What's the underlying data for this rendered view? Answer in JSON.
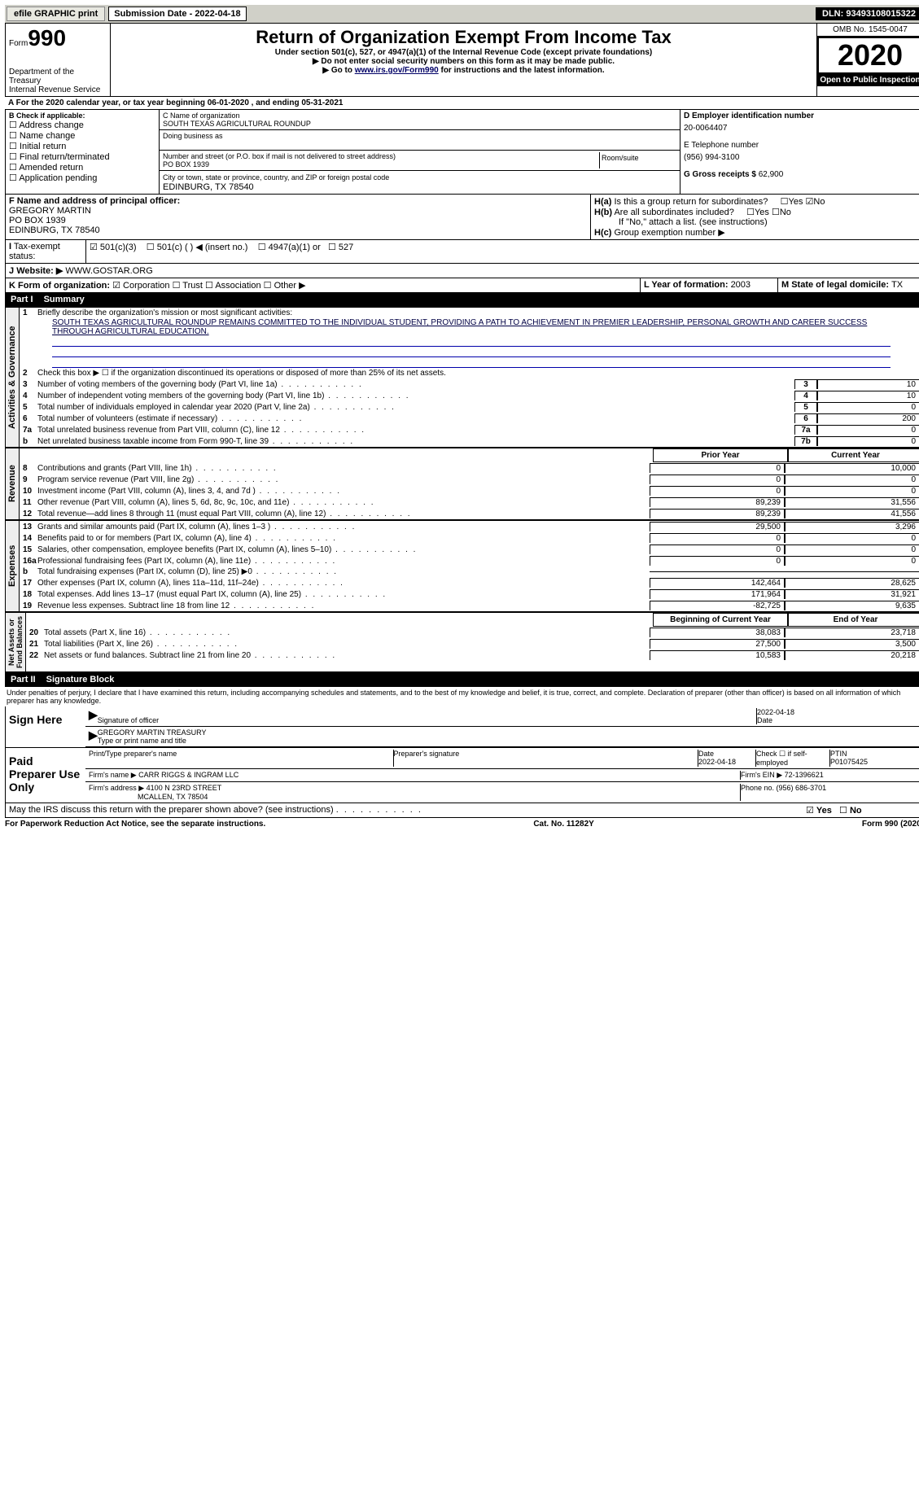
{
  "topbar": {
    "efile": "efile GRAPHIC print",
    "sub_label": "Submission Date - 2022-04-18",
    "dln": "DLN: 93493108015322"
  },
  "header": {
    "form_label": "Form",
    "form_num": "990",
    "dept": "Department of the Treasury",
    "irs": "Internal Revenue Service",
    "title": "Return of Organization Exempt From Income Tax",
    "subtitle": "Under section 501(c), 527, or 4947(a)(1) of the Internal Revenue Code (except private foundations)",
    "warn": "▶ Do not enter social security numbers on this form as it may be made public.",
    "goto": "▶ Go to ",
    "goto_link": "www.irs.gov/Form990",
    "goto_suffix": " for instructions and the latest information.",
    "omb": "OMB No. 1545-0047",
    "year": "2020",
    "open": "Open to Public Inspection"
  },
  "period": {
    "text_a": "A For the 2020 calendar year, or tax year beginning ",
    "begin": "06-01-2020",
    "text_b": " , and ending ",
    "end": "05-31-2021"
  },
  "sect_b": {
    "label": "B Check if applicable:",
    "items": [
      "Address change",
      "Name change",
      "Initial return",
      "Final return/terminated",
      "Amended return",
      "Application pending"
    ]
  },
  "sect_c": {
    "name_label": "C Name of organization",
    "name": "SOUTH TEXAS AGRICULTURAL ROUNDUP",
    "dba_label": "Doing business as",
    "addr_label": "Number and street (or P.O. box if mail is not delivered to street address)",
    "room_label": "Room/suite",
    "addr": "PO BOX 1939",
    "city_label": "City or town, state or province, country, and ZIP or foreign postal code",
    "city": "EDINBURG, TX  78540"
  },
  "sect_de": {
    "d_label": "D Employer identification number",
    "ein": "20-0064407",
    "e_label": "E Telephone number",
    "phone": "(956) 994-3100",
    "g_label": "G Gross receipts $ ",
    "g_val": "62,900"
  },
  "sect_f": {
    "label": "F  Name and address of principal officer:",
    "name": "GREGORY MARTIN",
    "addr1": "PO BOX 1939",
    "addr2": "EDINBURG, TX  78540"
  },
  "sect_h": {
    "ha": "Is this a group return for subordinates?",
    "ha_ans": "No",
    "hb": "Are all subordinates included?",
    "hb_note": "If \"No,\" attach a list. (see instructions)",
    "hc": "Group exemption number ▶"
  },
  "tax_status": {
    "label": "Tax-exempt status:",
    "opt1": "501(c)(3)",
    "opt2": "501(c) (  ) ◀ (insert no.)",
    "opt3": "4947(a)(1) or",
    "opt4": "527"
  },
  "website": {
    "label": "Website: ▶",
    "val": "WWW.GOSTAR.ORG"
  },
  "sect_k": {
    "label": "K Form of organization:",
    "opts": [
      "Corporation",
      "Trust",
      "Association",
      "Other ▶"
    ]
  },
  "sect_l": {
    "label": "L Year of formation: ",
    "val": "2003"
  },
  "sect_m": {
    "label": "M State of legal domicile: ",
    "val": "TX"
  },
  "part1": {
    "label": "Part I",
    "title": "Summary"
  },
  "mission": {
    "q1": "Briefly describe the organization's mission or most significant activities:",
    "text": "SOUTH TEXAS AGRICULTURAL ROUNDUP REMAINS COMMITTED TO THE INDIVIDUAL STUDENT, PROVIDING A PATH TO ACHIEVEMENT IN PREMIER LEADERSHIP, PERSONAL GROWTH AND CAREER SUCCESS THROUGH AGRICULTURAL EDUCATION."
  },
  "gov_lines": [
    {
      "n": "2",
      "t": "Check this box ▶ ☐  if the organization discontinued its operations or disposed of more than 25% of its net assets."
    },
    {
      "n": "3",
      "t": "Number of voting members of the governing body (Part VI, line 1a)",
      "box": "3",
      "v": "10"
    },
    {
      "n": "4",
      "t": "Number of independent voting members of the governing body (Part VI, line 1b)",
      "box": "4",
      "v": "10"
    },
    {
      "n": "5",
      "t": "Total number of individuals employed in calendar year 2020 (Part V, line 2a)",
      "box": "5",
      "v": "0"
    },
    {
      "n": "6",
      "t": "Total number of volunteers (estimate if necessary)",
      "box": "6",
      "v": "200"
    },
    {
      "n": "7a",
      "t": "Total unrelated business revenue from Part VIII, column (C), line 12",
      "box": "7a",
      "v": "0"
    },
    {
      "n": "b",
      "t": "Net unrelated business taxable income from Form 990-T, line 39",
      "box": "7b",
      "v": "0"
    }
  ],
  "col_hdr": {
    "py": "Prior Year",
    "cy": "Current Year",
    "bcy": "Beginning of Current Year",
    "eoy": "End of Year"
  },
  "rev_lines": [
    {
      "n": "8",
      "t": "Contributions and grants (Part VIII, line 1h)",
      "py": "0",
      "cy": "10,000"
    },
    {
      "n": "9",
      "t": "Program service revenue (Part VIII, line 2g)",
      "py": "0",
      "cy": "0"
    },
    {
      "n": "10",
      "t": "Investment income (Part VIII, column (A), lines 3, 4, and 7d )",
      "py": "0",
      "cy": "0"
    },
    {
      "n": "11",
      "t": "Other revenue (Part VIII, column (A), lines 5, 6d, 8c, 9c, 10c, and 11e)",
      "py": "89,239",
      "cy": "31,556"
    },
    {
      "n": "12",
      "t": "Total revenue—add lines 8 through 11 (must equal Part VIII, column (A), line 12)",
      "py": "89,239",
      "cy": "41,556"
    }
  ],
  "exp_lines": [
    {
      "n": "13",
      "t": "Grants and similar amounts paid (Part IX, column (A), lines 1–3 )",
      "py": "29,500",
      "cy": "3,296"
    },
    {
      "n": "14",
      "t": "Benefits paid to or for members (Part IX, column (A), line 4)",
      "py": "0",
      "cy": "0"
    },
    {
      "n": "15",
      "t": "Salaries, other compensation, employee benefits (Part IX, column (A), lines 5–10)",
      "py": "0",
      "cy": "0"
    },
    {
      "n": "16a",
      "t": "Professional fundraising fees (Part IX, column (A), line 11e)",
      "py": "0",
      "cy": "0"
    },
    {
      "n": "b",
      "t": "Total fundraising expenses (Part IX, column (D), line 25) ▶0",
      "py": "",
      "cy": "",
      "gray": true
    },
    {
      "n": "17",
      "t": "Other expenses (Part IX, column (A), lines 11a–11d, 11f–24e)",
      "py": "142,464",
      "cy": "28,625"
    },
    {
      "n": "18",
      "t": "Total expenses. Add lines 13–17 (must equal Part IX, column (A), line 25)",
      "py": "171,964",
      "cy": "31,921"
    },
    {
      "n": "19",
      "t": "Revenue less expenses. Subtract line 18 from line 12",
      "py": "-82,725",
      "cy": "9,635"
    }
  ],
  "na_lines": [
    {
      "n": "20",
      "t": "Total assets (Part X, line 16)",
      "py": "38,083",
      "cy": "23,718"
    },
    {
      "n": "21",
      "t": "Total liabilities (Part X, line 26)",
      "py": "27,500",
      "cy": "3,500"
    },
    {
      "n": "22",
      "t": "Net assets or fund balances. Subtract line 21 from line 20",
      "py": "10,583",
      "cy": "20,218"
    }
  ],
  "part2": {
    "label": "Part II",
    "title": "Signature Block"
  },
  "sig_decl": "Under penalties of perjury, I declare that I have examined this return, including accompanying schedules and statements, and to the best of my knowledge and belief, it is true, correct, and complete. Declaration of preparer (other than officer) is based on all information of which preparer has any knowledge.",
  "sign": {
    "here": "Sign Here",
    "sig_label": "Signature of officer",
    "date_label": "Date",
    "date": "2022-04-18",
    "name": "GREGORY MARTIN  TREASURY",
    "name_label": "Type or print name and title"
  },
  "paid": {
    "label": "Paid Preparer Use Only",
    "h1": "Print/Type preparer's name",
    "h2": "Preparer's signature",
    "h3": "Date",
    "h4": "Check ☐ if self-employed",
    "h5": "PTIN",
    "date": "2022-04-18",
    "ptin": "P01075425",
    "firm_label": "Firm's name  ▶",
    "firm": "CARR RIGGS & INGRAM LLC",
    "ein_label": "Firm's EIN ▶",
    "ein": "72-1396621",
    "addr_label": "Firm's address ▶",
    "addr1": "4100 N 23RD STREET",
    "addr2": "MCALLEN, TX  78504",
    "phone_label": "Phone no. ",
    "phone": "(956) 686-3701"
  },
  "discuss": {
    "q": "May the IRS discuss this return with the preparer shown above? (see instructions)",
    "ans": "Yes"
  },
  "footer": {
    "l": "For Paperwork Reduction Act Notice, see the separate instructions.",
    "c": "Cat. No. 11282Y",
    "r": "Form 990 (2020)"
  }
}
